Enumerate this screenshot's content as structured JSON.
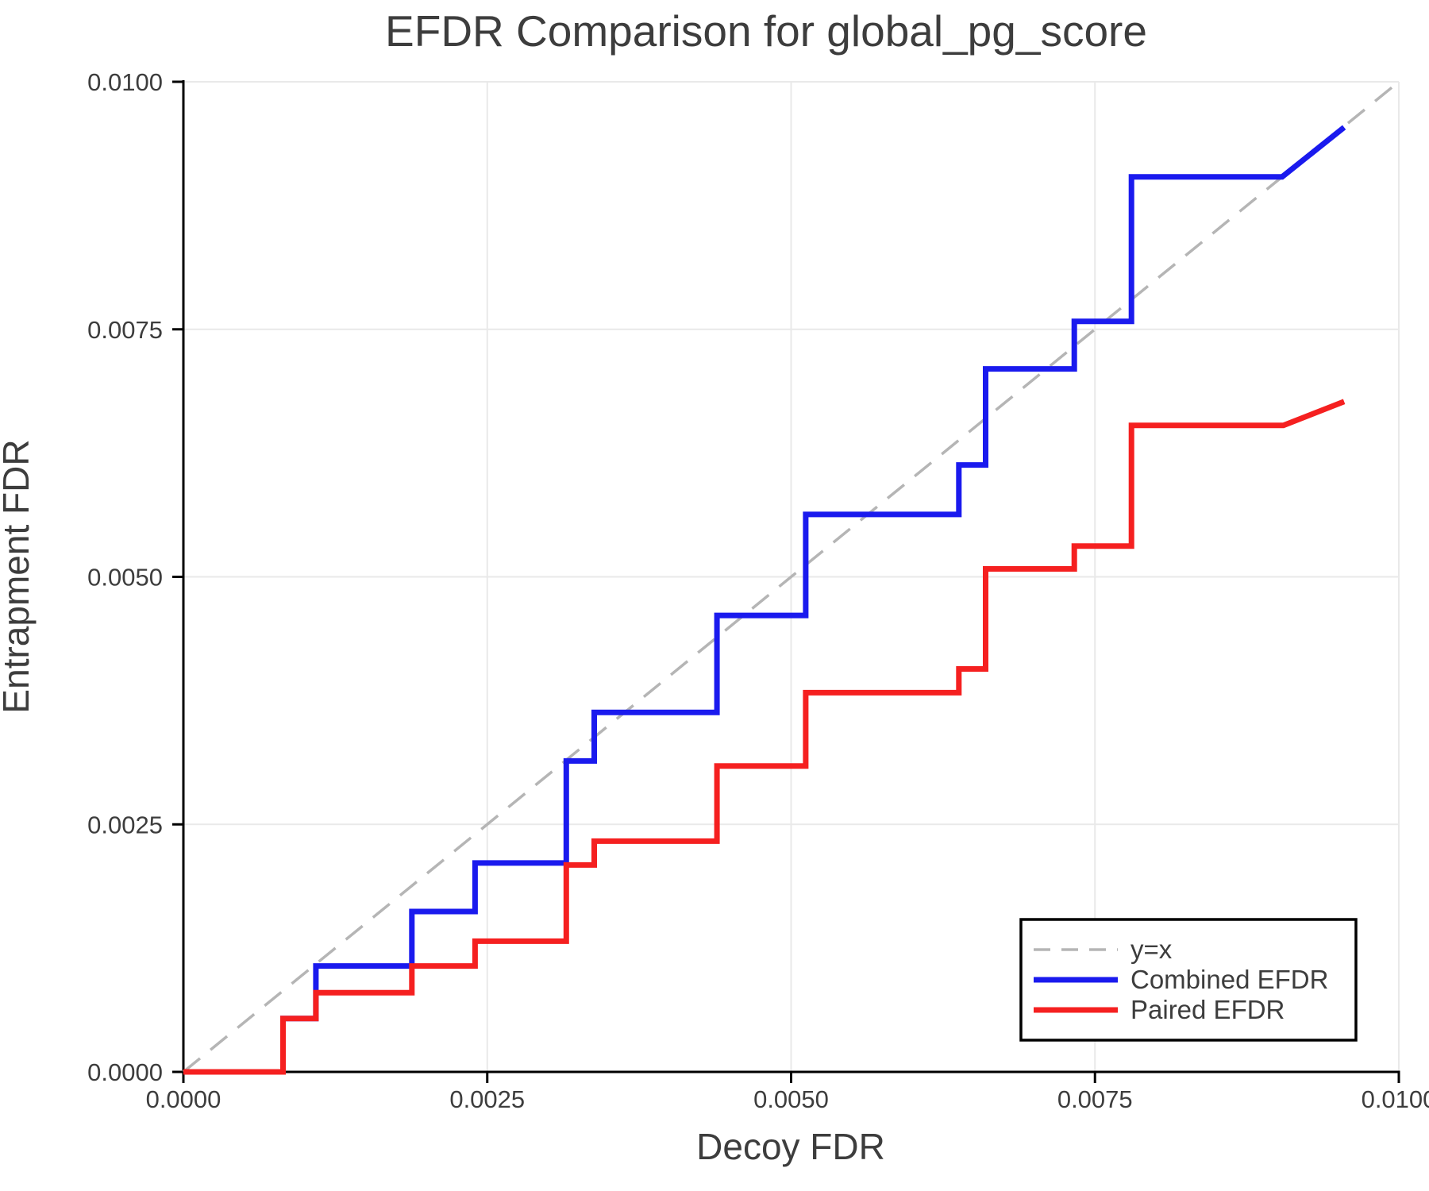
{
  "chart_data": {
    "type": "line",
    "title": "EFDR Comparison for global_pg_score",
    "xlabel": "Decoy FDR",
    "ylabel": "Entrapment FDR",
    "xlim": [
      0.0,
      0.01
    ],
    "ylim": [
      0.0,
      0.01
    ],
    "grid": true,
    "background_color": "#ffffff",
    "text_color": "#3d3d3d",
    "grid_color": "#e9e9e9",
    "spine_color": "#000000",
    "xticks": [
      {
        "value": 0.0,
        "label": "0.0000"
      },
      {
        "value": 0.0025,
        "label": "0.0025"
      },
      {
        "value": 0.005,
        "label": "0.0050"
      },
      {
        "value": 0.0075,
        "label": "0.0075"
      },
      {
        "value": 0.01,
        "label": "0.0100"
      }
    ],
    "yticks": [
      {
        "value": 0.0,
        "label": "0.0000"
      },
      {
        "value": 0.0025,
        "label": "0.0025"
      },
      {
        "value": 0.005,
        "label": "0.0050"
      },
      {
        "value": 0.0075,
        "label": "0.0075"
      },
      {
        "value": 0.01,
        "label": "0.0100"
      }
    ],
    "legend": {
      "position": "lower right",
      "border_color": "#000000",
      "background": "#ffffff"
    },
    "series": [
      {
        "name": "y=x",
        "slug": "y-equals-x",
        "color": "#b5b5b5",
        "style": "dashed",
        "width": 3.5,
        "points": [
          [
            0.0,
            0.0
          ],
          [
            0.01,
            0.01
          ]
        ]
      },
      {
        "name": "Combined EFDR",
        "slug": "combined-efdr",
        "color": "#1a1aee",
        "style": "solid",
        "width": 7,
        "points": [
          [
            0.0,
            0.0
          ],
          [
            0.00082,
            0.0
          ],
          [
            0.00082,
            0.00054
          ],
          [
            0.00109,
            0.00054
          ],
          [
            0.00109,
            0.00107
          ],
          [
            0.00188,
            0.00107
          ],
          [
            0.00188,
            0.00162
          ],
          [
            0.0024,
            0.00162
          ],
          [
            0.0024,
            0.00211
          ],
          [
            0.00315,
            0.00211
          ],
          [
            0.00315,
            0.00314
          ],
          [
            0.00338,
            0.00314
          ],
          [
            0.00338,
            0.00363
          ],
          [
            0.00439,
            0.00363
          ],
          [
            0.00439,
            0.00461
          ],
          [
            0.00512,
            0.00461
          ],
          [
            0.00512,
            0.00563
          ],
          [
            0.00638,
            0.00563
          ],
          [
            0.00638,
            0.00613
          ],
          [
            0.0066,
            0.00613
          ],
          [
            0.0066,
            0.0071
          ],
          [
            0.00733,
            0.0071
          ],
          [
            0.00733,
            0.00758
          ],
          [
            0.0078,
            0.00758
          ],
          [
            0.0078,
            0.00904
          ],
          [
            0.00904,
            0.00904
          ],
          [
            0.00955,
            0.00954
          ]
        ]
      },
      {
        "name": "Paired EFDR",
        "slug": "paired-efdr",
        "color": "#f52020",
        "style": "solid",
        "width": 7,
        "points": [
          [
            0.0,
            0.0
          ],
          [
            0.00082,
            0.0
          ],
          [
            0.00082,
            0.00054
          ],
          [
            0.00109,
            0.00054
          ],
          [
            0.00109,
            0.0008
          ],
          [
            0.00188,
            0.0008
          ],
          [
            0.00188,
            0.00107
          ],
          [
            0.0024,
            0.00107
          ],
          [
            0.0024,
            0.00132
          ],
          [
            0.00315,
            0.00132
          ],
          [
            0.00315,
            0.00209
          ],
          [
            0.00338,
            0.00209
          ],
          [
            0.00338,
            0.00233
          ],
          [
            0.00439,
            0.00233
          ],
          [
            0.00439,
            0.00309
          ],
          [
            0.00512,
            0.00309
          ],
          [
            0.00512,
            0.00383
          ],
          [
            0.00638,
            0.00383
          ],
          [
            0.00638,
            0.00407
          ],
          [
            0.0066,
            0.00407
          ],
          [
            0.0066,
            0.00508
          ],
          [
            0.00733,
            0.00508
          ],
          [
            0.00733,
            0.00531
          ],
          [
            0.0078,
            0.00531
          ],
          [
            0.0078,
            0.00653
          ],
          [
            0.00905,
            0.00653
          ],
          [
            0.00955,
            0.00677
          ]
        ]
      }
    ]
  }
}
